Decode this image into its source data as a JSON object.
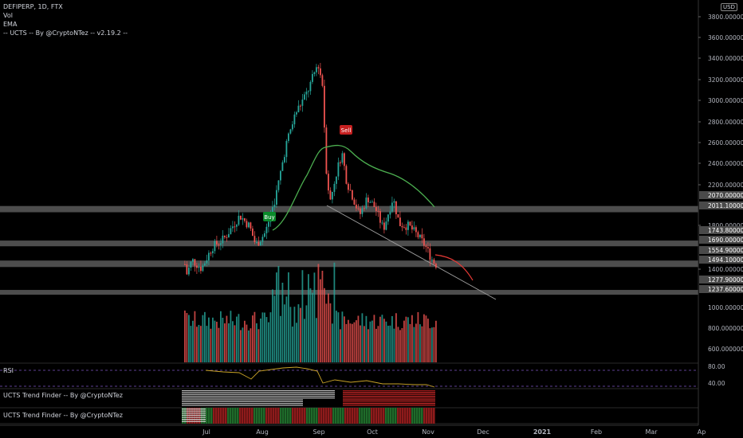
{
  "header": {
    "symbol_line": "DEFIPERP, 1D, FTX",
    "vol_label": "Vol",
    "ema_label": "EMA",
    "indicator_label": "-- UCTS -- By @CryptoNTez -- v2.19.2 --"
  },
  "currency_badge": "USD",
  "panes": {
    "rsi_title": "RSI",
    "trend1_title": "UCTS Trend Finder -- By @CryptoNTez",
    "trend2_title": "UCTS Trend Finder -- By @CryptoNTez"
  },
  "chart_data": {
    "type": "candlestick",
    "price_ticks": [
      "3800.00000000",
      "3600.00000000",
      "3400.00000000",
      "3200.00000000",
      "3000.00000000",
      "2800.00000000",
      "2600.00000000",
      "2400.00000000",
      "2200.00000000",
      "1400.00000000",
      "1800.00000000"
    ],
    "level_labels": [
      "2070.00000000",
      "2011.10000000",
      "1743.80000000",
      "1690.00000000",
      "1554.90000000",
      "1494.10000000",
      "1277.90000000",
      "1237.60000000"
    ],
    "volume_ticks": [
      "1000.00000000",
      "800.00000000",
      "600.00000000"
    ],
    "rsi_ticks": [
      "80.00",
      "40.00"
    ],
    "x_ticks": [
      "Jul",
      "Aug",
      "Sep",
      "Oct",
      "Nov",
      "Dec",
      "2021",
      "Feb",
      "Mar",
      "Ap"
    ],
    "support_resistance_zones": [
      [
        2011.1,
        2070
      ],
      [
        1690,
        1743.8
      ],
      [
        1494.1,
        1554.9
      ],
      [
        1237.6,
        1277.9
      ]
    ],
    "signals": [
      {
        "label": "Buy",
        "color": "#0a8a2a"
      },
      {
        "label": "Sell",
        "color": "#c62020"
      }
    ],
    "colors": {
      "up": "#26a69a",
      "down": "#ef5350",
      "ema": "#4caf50",
      "rsi": "#c9a227",
      "zone": "#5a5a5a",
      "projection": "#e53935"
    }
  }
}
